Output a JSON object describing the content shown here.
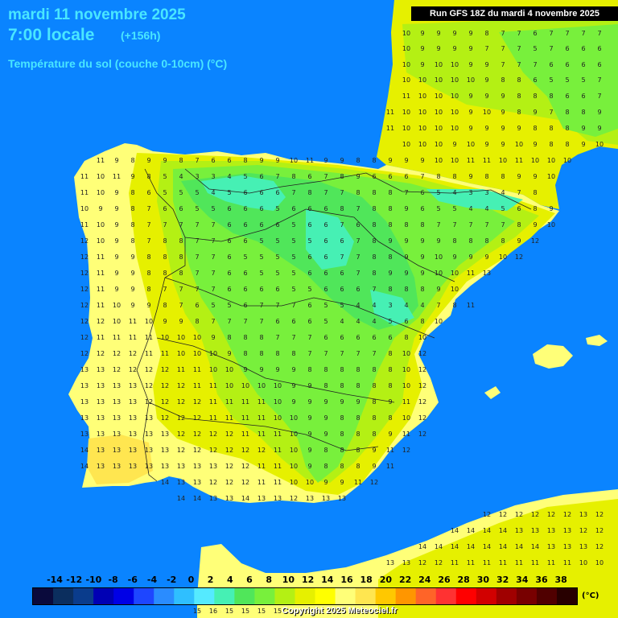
{
  "header": {
    "title": "mardi 11 novembre 2025",
    "time": "7:00 locale",
    "offset": "(+156h)",
    "variable": "Température du sol (couche 0-10cm) (°C)"
  },
  "run_info": "Run GFS 18Z du mardi 4 novembre 2025",
  "legend": {
    "labels": [
      "-14",
      "-12",
      "-10",
      "-8",
      "-6",
      "-4",
      "-2",
      "0",
      "2",
      "4",
      "6",
      "8",
      "10",
      "12",
      "14",
      "16",
      "18",
      "20",
      "22",
      "24",
      "26",
      "28",
      "30",
      "32",
      "34",
      "36",
      "38"
    ],
    "unit": "(°C)",
    "colors": [
      "#0a0a3c",
      "#0b2e5e",
      "#0a3c8c",
      "#0000b4",
      "#0000e6",
      "#1e46ff",
      "#2a8cff",
      "#2fbfff",
      "#55eaff",
      "#46f0b4",
      "#50e65a",
      "#78f03c",
      "#b4f014",
      "#e6f000",
      "#ffff00",
      "#ffff78",
      "#ffe650",
      "#ffc800",
      "#ff9600",
      "#ff6428",
      "#ff3232",
      "#ff0000",
      "#d20000",
      "#a00000",
      "#780000",
      "#500000",
      "#280000"
    ]
  },
  "copyright": "Copyright 2025 Meteociel.fr",
  "map": {
    "colors": {
      "sea": "#0a84ff",
      "warm_land": "#ffff78",
      "mild_land": "#e6f000",
      "cool_land": "#b4f014",
      "cold_land": "#50e65a",
      "coldest_land": "#46f0b4",
      "ochre": "#ffe650"
    },
    "value_rows": [
      {
        "y": 44,
        "x0": 505,
        "values": [
          10,
          9,
          9,
          9,
          9,
          8,
          7,
          7,
          6,
          7,
          7,
          7,
          7,
          7
        ]
      },
      {
        "y": 63,
        "x0": 505,
        "values": [
          10,
          9,
          9,
          9,
          9,
          7,
          7,
          7,
          5,
          7,
          6,
          6,
          6,
          6
        ]
      },
      {
        "y": 83,
        "x0": 505,
        "values": [
          10,
          9,
          10,
          10,
          9,
          9,
          7,
          7,
          7,
          6,
          6,
          6,
          6,
          6
        ]
      },
      {
        "y": 102,
        "x0": 505,
        "values": [
          10,
          10,
          10,
          10,
          10,
          9,
          8,
          8,
          6,
          5,
          5,
          5,
          7
        ]
      },
      {
        "y": 122,
        "x0": 505,
        "values": [
          11,
          10,
          10,
          10,
          9,
          9,
          9,
          8,
          8,
          8,
          6,
          6,
          7,
          8
        ]
      },
      {
        "y": 142,
        "x0": 485,
        "values": [
          11,
          10,
          10,
          10,
          10,
          9,
          10,
          9,
          8,
          9,
          7,
          8,
          8,
          9,
          8
        ]
      },
      {
        "y": 162,
        "x0": 485,
        "values": [
          11,
          10,
          10,
          10,
          10,
          9,
          9,
          9,
          9,
          8,
          8,
          8,
          9,
          9,
          9
        ]
      },
      {
        "y": 182,
        "x0": 505,
        "values": [
          10,
          10,
          10,
          9,
          10,
          9,
          9,
          10,
          9,
          8,
          8,
          9,
          10,
          10
        ]
      },
      {
        "y": 202,
        "x0": 125,
        "values": [
          11,
          9,
          8,
          9,
          9,
          8,
          7,
          6,
          6,
          8,
          9,
          9,
          10,
          11,
          9,
          9,
          8,
          8,
          9,
          9,
          9,
          10,
          10,
          11,
          11,
          10,
          11,
          10,
          10,
          10
        ]
      },
      {
        "y": 222,
        "x0": 105,
        "values": [
          11,
          10,
          11,
          9,
          8,
          5,
          4,
          3,
          3,
          4,
          5,
          6,
          7,
          8,
          6,
          7,
          8,
          9,
          6,
          6,
          6,
          7,
          8,
          8,
          9,
          8,
          8,
          9,
          9,
          10
        ]
      },
      {
        "y": 242,
        "x0": 105,
        "values": [
          11,
          10,
          9,
          8,
          6,
          5,
          5,
          5,
          4,
          5,
          6,
          6,
          6,
          7,
          8,
          7,
          7,
          8,
          8,
          8,
          7,
          6,
          5,
          4,
          3,
          3,
          4,
          7,
          8
        ]
      },
      {
        "y": 262,
        "x0": 105,
        "values": [
          10,
          9,
          9,
          8,
          7,
          6,
          6,
          5,
          5,
          6,
          6,
          6,
          5,
          6,
          6,
          6,
          8,
          7,
          8,
          8,
          9,
          6,
          5,
          5,
          4,
          4,
          5,
          6,
          8,
          9
        ]
      },
      {
        "y": 282,
        "x0": 105,
        "values": [
          11,
          10,
          9,
          8,
          7,
          7,
          7,
          7,
          7,
          6,
          6,
          6,
          6,
          5,
          6,
          6,
          7,
          6,
          8,
          8,
          8,
          8,
          7,
          7,
          7,
          7,
          7,
          8,
          9,
          10
        ]
      },
      {
        "y": 302,
        "x0": 105,
        "values": [
          12,
          10,
          9,
          8,
          7,
          8,
          8,
          7,
          7,
          6,
          6,
          5,
          5,
          5,
          5,
          6,
          6,
          7,
          8,
          9,
          9,
          9,
          9,
          8,
          8,
          8,
          8,
          9,
          12
        ]
      },
      {
        "y": 322,
        "x0": 105,
        "values": [
          12,
          11,
          9,
          9,
          8,
          8,
          8,
          7,
          7,
          6,
          5,
          5,
          5,
          5,
          6,
          6,
          7,
          7,
          8,
          8,
          9,
          9,
          10,
          9,
          9,
          9,
          10,
          12
        ]
      },
      {
        "y": 342,
        "x0": 105,
        "values": [
          12,
          11,
          9,
          9,
          8,
          8,
          8,
          7,
          7,
          6,
          6,
          5,
          5,
          5,
          6,
          6,
          6,
          7,
          8,
          9,
          9,
          9,
          10,
          10,
          11,
          13
        ]
      },
      {
        "y": 362,
        "x0": 105,
        "values": [
          12,
          11,
          9,
          9,
          8,
          7,
          7,
          7,
          7,
          6,
          6,
          6,
          6,
          5,
          5,
          6,
          6,
          6,
          7,
          8,
          8,
          8,
          9,
          10
        ]
      },
      {
        "y": 382,
        "x0": 105,
        "values": [
          12,
          11,
          10,
          9,
          9,
          8,
          7,
          6,
          5,
          5,
          6,
          7,
          7,
          7,
          6,
          5,
          5,
          4,
          4,
          3,
          4,
          4,
          7,
          8,
          11
        ]
      },
      {
        "y": 402,
        "x0": 105,
        "values": [
          12,
          12,
          10,
          11,
          10,
          9,
          9,
          8,
          7,
          7,
          7,
          7,
          6,
          6,
          6,
          5,
          4,
          4,
          4,
          5,
          6,
          8,
          10
        ]
      },
      {
        "y": 422,
        "x0": 105,
        "values": [
          12,
          11,
          11,
          11,
          11,
          10,
          10,
          10,
          9,
          8,
          8,
          8,
          7,
          7,
          7,
          6,
          6,
          6,
          6,
          6,
          8,
          10
        ]
      },
      {
        "y": 442,
        "x0": 105,
        "values": [
          12,
          12,
          12,
          12,
          11,
          11,
          10,
          10,
          10,
          9,
          8,
          8,
          8,
          8,
          7,
          7,
          7,
          7,
          7,
          8,
          10,
          12
        ]
      },
      {
        "y": 462,
        "x0": 105,
        "values": [
          13,
          13,
          12,
          12,
          12,
          12,
          11,
          11,
          10,
          10,
          9,
          9,
          9,
          9,
          8,
          8,
          8,
          8,
          8,
          8,
          10,
          12
        ]
      },
      {
        "y": 482,
        "x0": 105,
        "values": [
          13,
          13,
          13,
          13,
          12,
          12,
          12,
          11,
          11,
          10,
          10,
          10,
          10,
          9,
          9,
          8,
          8,
          8,
          8,
          8,
          10,
          12
        ]
      },
      {
        "y": 502,
        "x0": 105,
        "values": [
          13,
          13,
          13,
          13,
          12,
          12,
          12,
          12,
          11,
          11,
          11,
          11,
          10,
          9,
          9,
          9,
          9,
          9,
          8,
          9,
          11,
          12
        ]
      },
      {
        "y": 522,
        "x0": 105,
        "values": [
          13,
          13,
          13,
          13,
          13,
          12,
          12,
          12,
          11,
          11,
          11,
          11,
          10,
          10,
          9,
          9,
          8,
          8,
          8,
          8,
          10,
          12
        ]
      },
      {
        "y": 542,
        "x0": 105,
        "values": [
          13,
          13,
          13,
          13,
          13,
          13,
          12,
          12,
          12,
          12,
          11,
          11,
          11,
          10,
          9,
          9,
          8,
          8,
          8,
          9,
          11,
          12
        ]
      },
      {
        "y": 562,
        "x0": 105,
        "values": [
          14,
          13,
          13,
          13,
          13,
          13,
          12,
          12,
          12,
          12,
          12,
          12,
          11,
          10,
          9,
          8,
          8,
          8,
          9,
          11,
          12
        ]
      },
      {
        "y": 582,
        "x0": 105,
        "values": [
          14,
          13,
          13,
          13,
          13,
          13,
          13,
          13,
          13,
          12,
          12,
          11,
          11,
          10,
          9,
          8,
          8,
          8,
          9,
          11
        ]
      },
      {
        "y": 602,
        "x0": 205,
        "values": [
          14,
          13,
          13,
          12,
          12,
          12,
          11,
          11,
          10,
          10,
          9,
          9,
          11,
          12
        ]
      },
      {
        "y": 622,
        "x0": 225,
        "values": [
          14,
          14,
          13,
          13,
          14,
          13,
          13,
          12,
          13,
          13,
          13
        ]
      },
      {
        "y": 642,
        "x0": 605,
        "values": [
          12,
          12,
          12,
          12,
          12,
          12,
          13,
          12,
          13
        ]
      },
      {
        "y": 662,
        "x0": 565,
        "values": [
          14,
          14,
          14,
          14,
          13,
          13,
          13,
          13,
          12,
          12,
          12,
          12
        ]
      },
      {
        "y": 682,
        "x0": 525,
        "values": [
          14,
          14,
          14,
          14,
          14,
          14,
          14,
          14,
          13,
          13,
          13,
          12,
          12
        ]
      },
      {
        "y": 702,
        "x0": 485,
        "values": [
          13,
          13,
          12,
          12,
          11,
          11,
          11,
          11,
          11,
          11,
          11,
          11,
          10,
          10
        ]
      },
      {
        "y": 762,
        "x0": 245,
        "values": [
          15,
          16,
          15,
          15,
          15,
          15
        ]
      }
    ]
  }
}
